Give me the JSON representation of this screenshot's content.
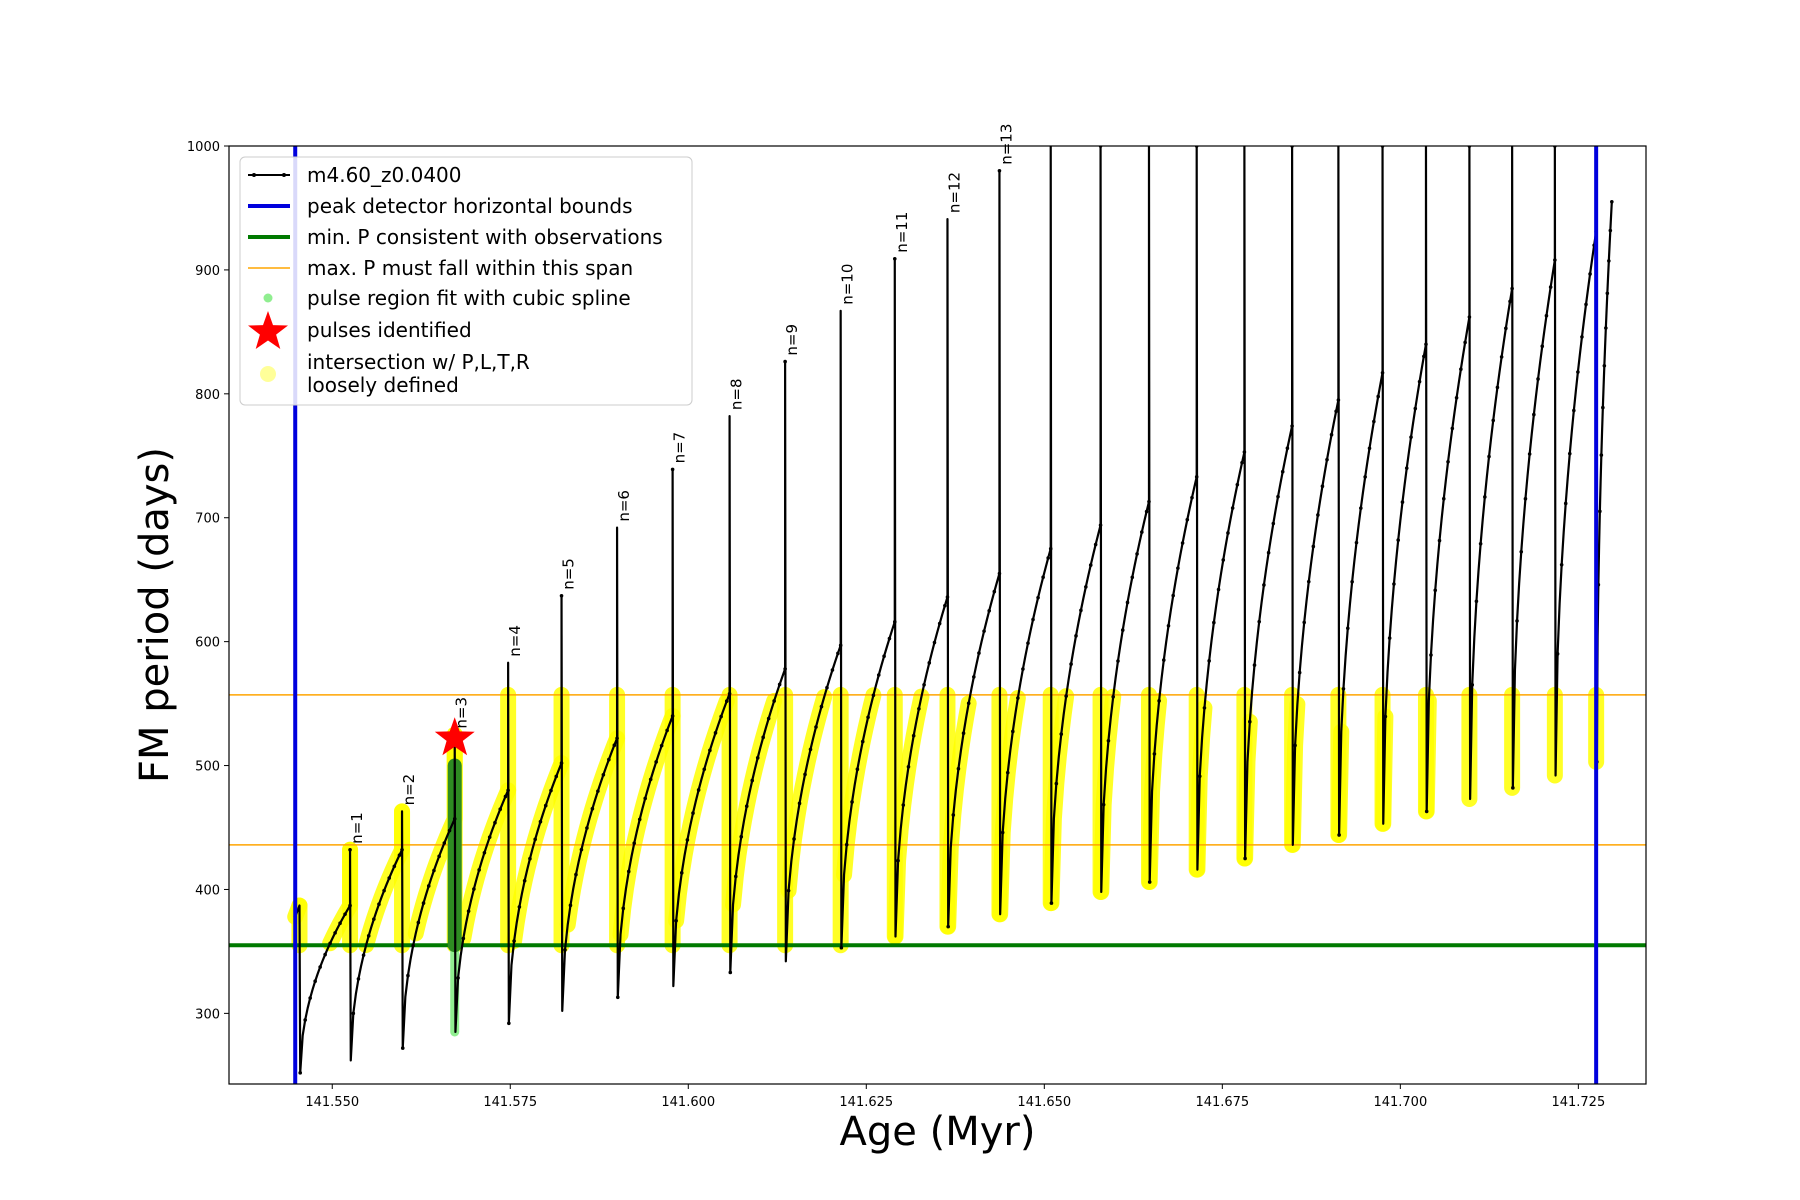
{
  "chart_data": {
    "type": "line",
    "title": "",
    "xlabel": "Age (Myr)",
    "ylabel": "FM period (days)",
    "xlim": [
      141.5355,
      141.7345
    ],
    "ylim": [
      243,
      1000
    ],
    "xticks": [
      141.55,
      141.575,
      141.6,
      141.625,
      141.65,
      141.675,
      141.7,
      141.725
    ],
    "xtick_labels": [
      "141.550",
      "141.575",
      "141.600",
      "141.625",
      "141.650",
      "141.675",
      "141.700",
      "141.725"
    ],
    "yticks": [
      300,
      400,
      500,
      600,
      700,
      800,
      900,
      1000
    ],
    "ytick_labels": [
      "300",
      "400",
      "500",
      "600",
      "700",
      "800",
      "900",
      "1000"
    ],
    "legend": {
      "position": "top-left",
      "entries": [
        {
          "label": "m4.60_z0.0400",
          "symbol": "line-dot",
          "color": "#000000"
        },
        {
          "label": "peak detector horizontal bounds",
          "symbol": "line-thick",
          "color": "#0000dd"
        },
        {
          "label": "min. P consistent with observations",
          "symbol": "line-thick",
          "color": "#007a00"
        },
        {
          "label": "max. P must fall within this span",
          "symbol": "line-thin",
          "color": "#ffa500"
        },
        {
          "label": "pulse region fit with cubic spline",
          "symbol": "dot",
          "color": "#90ee90"
        },
        {
          "label": "pulses identified",
          "symbol": "star",
          "color": "#ff0000"
        },
        {
          "label": "intersection w/ P,L,T,R",
          "label2": "loosely defined",
          "symbol": "big-dot",
          "color": "#ffff99"
        }
      ]
    },
    "vertical_bounds": {
      "x": [
        141.5448,
        141.7275
      ],
      "color": "#0000dd"
    },
    "min_period_line": {
      "y": 355,
      "color": "#007a00"
    },
    "max_period_span": {
      "y": [
        436,
        557
      ],
      "color": "#ffa500"
    },
    "series": [
      {
        "name": "m4.60_z0.0400",
        "color": "#000000",
        "start": {
          "x": 141.5448,
          "y": 378
        },
        "pulses": [
          {
            "x": 141.5454,
            "peak": 387,
            "dip": 252
          },
          {
            "x": 141.5525,
            "peak": 432,
            "dip": 262
          },
          {
            "x": 141.5598,
            "peak": 463,
            "dip": 272
          },
          {
            "x": 141.5672,
            "peak": 525,
            "dip": 285
          },
          {
            "x": 141.5747,
            "peak": 583,
            "dip": 292
          },
          {
            "x": 141.5822,
            "peak": 637,
            "dip": 302
          },
          {
            "x": 141.59,
            "peak": 692,
            "dip": 313
          },
          {
            "x": 141.5978,
            "peak": 739,
            "dip": 322
          },
          {
            "x": 141.6058,
            "peak": 782,
            "dip": 333
          },
          {
            "x": 141.6136,
            "peak": 826,
            "dip": 342
          },
          {
            "x": 141.6214,
            "peak": 867,
            "dip": 353
          },
          {
            "x": 141.629,
            "peak": 909,
            "dip": 362
          },
          {
            "x": 141.6364,
            "peak": 941,
            "dip": 370
          },
          {
            "x": 141.6437,
            "peak": 980,
            "dip": 380
          },
          {
            "x": 141.6509,
            "peak": 1000,
            "dip": 389
          },
          {
            "x": 141.6579,
            "peak": 1000,
            "dip": 398
          },
          {
            "x": 141.6647,
            "peak": 1000,
            "dip": 406
          },
          {
            "x": 141.6714,
            "peak": 1000,
            "dip": 416
          },
          {
            "x": 141.6781,
            "peak": 1000,
            "dip": 425
          },
          {
            "x": 141.6848,
            "peak": 1000,
            "dip": 436
          },
          {
            "x": 141.6913,
            "peak": 1000,
            "dip": 444
          },
          {
            "x": 141.6975,
            "peak": 1000,
            "dip": 453
          },
          {
            "x": 141.7036,
            "peak": 1000,
            "dip": 463
          },
          {
            "x": 141.7097,
            "peak": 1000,
            "dip": 473
          },
          {
            "x": 141.7157,
            "peak": 1000,
            "dip": 482
          },
          {
            "x": 141.7217,
            "peak": 1000,
            "dip": 492
          },
          {
            "x": 141.7275,
            "peak": 1000,
            "dip": 503
          }
        ],
        "arch_tops": [
          387,
          432,
          457,
          480,
          502,
          522,
          540,
          558,
          578,
          597,
          616,
          636,
          655,
          675,
          694,
          713,
          733,
          753,
          774,
          795,
          817,
          840,
          862,
          885,
          908,
          931,
          953
        ],
        "end": {
          "x": 141.7297,
          "y": 955
        }
      }
    ],
    "peak_labels": [
      {
        "text": "n=1",
        "x": 141.5525,
        "y": 432
      },
      {
        "text": "n=2",
        "x": 141.5598,
        "y": 463
      },
      {
        "text": "n=3",
        "x": 141.5672,
        "y": 525
      },
      {
        "text": "n=4",
        "x": 141.5747,
        "y": 583
      },
      {
        "text": "n=5",
        "x": 141.5822,
        "y": 637
      },
      {
        "text": "n=6",
        "x": 141.59,
        "y": 692
      },
      {
        "text": "n=7",
        "x": 141.5978,
        "y": 739
      },
      {
        "text": "n=8",
        "x": 141.6058,
        "y": 782
      },
      {
        "text": "n=9",
        "x": 141.6136,
        "y": 826
      },
      {
        "text": "n=10",
        "x": 141.6214,
        "y": 867
      },
      {
        "text": "n=11",
        "x": 141.629,
        "y": 909
      },
      {
        "text": "n=12",
        "x": 141.6364,
        "y": 941
      },
      {
        "text": "n=13",
        "x": 141.6437,
        "y": 980
      }
    ],
    "identified_pulse": {
      "x": 141.5672,
      "y": 522,
      "color": "#ff0000"
    },
    "spline_region": {
      "x": 141.5672,
      "y": [
        285,
        500
      ],
      "color": "#90ee90"
    },
    "spline_region_inner": {
      "y": [
        355,
        500
      ],
      "color": "#2e8b22"
    },
    "intersection_region": {
      "y": [
        355,
        557
      ],
      "color": "#ffff00"
    }
  }
}
